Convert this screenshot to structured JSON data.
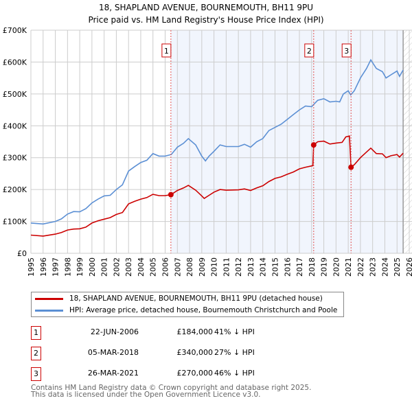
{
  "chart_data": {
    "type": "line",
    "title": "18, SHAPLAND AVENUE, BOURNEMOUTH, BH11 9PU",
    "subtitle": "Price paid vs. HM Land Registry's House Price Index (HPI)",
    "xlim": [
      1995,
      2026
    ],
    "ylim": [
      0,
      700000
    ],
    "y_ticks": [
      {
        "v": 0,
        "label": "£0"
      },
      {
        "v": 100000,
        "label": "£100K"
      },
      {
        "v": 200000,
        "label": "£200K"
      },
      {
        "v": 300000,
        "label": "£300K"
      },
      {
        "v": 400000,
        "label": "£400K"
      },
      {
        "v": 500000,
        "label": "£500K"
      },
      {
        "v": 600000,
        "label": "£600K"
      },
      {
        "v": 700000,
        "label": "£700K"
      }
    ],
    "x_ticks": [
      "1995",
      "1996",
      "1997",
      "1998",
      "1999",
      "2000",
      "2001",
      "2002",
      "2003",
      "2004",
      "2005",
      "2006",
      "2007",
      "2008",
      "2009",
      "2010",
      "2011",
      "2012",
      "2013",
      "2014",
      "2015",
      "2016",
      "2017",
      "2018",
      "2019",
      "2020",
      "2021",
      "2022",
      "2023",
      "2024",
      "2025",
      "2026"
    ],
    "grid": true,
    "shaded_from": 2006.47,
    "forecast_from": 2025.5,
    "series": [
      {
        "name": "18, SHAPLAND AVENUE, BOURNEMOUTH, BH11 9PU (detached house)",
        "color": "#cc0000",
        "x": [
          1995,
          1996,
          1997,
          1997.5,
          1998,
          1998.5,
          1999,
          1999.5,
          2000,
          2000.5,
          2001,
          2001.5,
          2002,
          2002.5,
          2003,
          2003.5,
          2004,
          2004.5,
          2005,
          2005.5,
          2006,
          2006.47,
          2007,
          2007.5,
          2007.9,
          2008.5,
          2009,
          2009.2,
          2009.6,
          2010,
          2010.5,
          2011,
          2012,
          2012.5,
          2013,
          2013.5,
          2014,
          2014.5,
          2015,
          2015.5,
          2016,
          2016.5,
          2017,
          2017.5,
          2018.1,
          2018.17,
          2018.5,
          2019,
          2019.5,
          2020,
          2020.5,
          2020.8,
          2021.1,
          2021.23,
          2021.5,
          2022,
          2022.5,
          2022.85,
          2023.3,
          2023.8,
          2024.1,
          2024.5,
          2025,
          2025.2,
          2025.5
        ],
        "y": [
          57,
          54,
          60,
          65,
          73,
          76,
          77,
          82,
          95,
          102,
          107,
          112,
          122,
          128,
          155,
          163,
          170,
          175,
          185,
          181,
          181,
          184,
          197,
          205,
          213,
          198,
          180,
          172,
          182,
          192,
          200,
          198,
          199,
          202,
          197,
          205,
          212,
          225,
          235,
          240,
          248,
          255,
          265,
          270,
          275,
          340,
          350,
          352,
          343,
          346,
          348,
          365,
          368,
          270,
          278,
          300,
          318,
          330,
          313,
          312,
          300,
          306,
          310,
          302,
          314
        ]
      },
      {
        "name": "HPI: Average price, detached house, Bournemouth Christchurch and Poole",
        "color": "#5b8fd4",
        "x": [
          1995,
          1996,
          1997,
          1997.5,
          1998,
          1998.5,
          1999,
          1999.5,
          2000,
          2000.5,
          2001,
          2001.5,
          2002,
          2002.5,
          2003,
          2003.5,
          2004,
          2004.5,
          2005,
          2005.5,
          2006,
          2006.5,
          2007,
          2007.5,
          2007.9,
          2008.5,
          2009,
          2009.3,
          2009.6,
          2010,
          2010.5,
          2011,
          2012,
          2012.5,
          2013,
          2013.5,
          2014,
          2014.5,
          2015,
          2015.5,
          2016,
          2016.5,
          2017,
          2017.5,
          2018,
          2018.5,
          2019,
          2019.5,
          2020,
          2020.3,
          2020.6,
          2021,
          2021.2,
          2021.5,
          2022,
          2022.5,
          2022.85,
          2023.3,
          2023.8,
          2024.1,
          2024.5,
          2025,
          2025.2,
          2025.5
        ],
        "y": [
          95,
          92,
          100,
          108,
          123,
          131,
          130,
          140,
          158,
          170,
          180,
          182,
          200,
          215,
          258,
          272,
          285,
          292,
          313,
          305,
          305,
          310,
          333,
          345,
          360,
          340,
          305,
          290,
          305,
          320,
          340,
          335,
          335,
          342,
          333,
          350,
          360,
          385,
          395,
          405,
          420,
          435,
          450,
          462,
          460,
          480,
          485,
          475,
          477,
          475,
          500,
          510,
          497,
          510,
          550,
          580,
          607,
          580,
          570,
          550,
          560,
          572,
          555,
          575
        ]
      }
    ],
    "y_units": "thousand GBP",
    "markers": [
      {
        "label": "1",
        "x": 2006.47,
        "y": 184
      },
      {
        "label": "2",
        "x": 2018.17,
        "y": 340
      },
      {
        "label": "3",
        "x": 2021.23,
        "y": 270
      }
    ]
  },
  "legend": {
    "property": "18, SHAPLAND AVENUE, BOURNEMOUTH, BH11 9PU (detached house)",
    "hpi": "HPI: Average price, detached house, Bournemouth Christchurch and Poole"
  },
  "transactions": [
    {
      "num": "1",
      "date": "22-JUN-2006",
      "price": "£184,000",
      "hpi": "41% ↓ HPI"
    },
    {
      "num": "2",
      "date": "05-MAR-2018",
      "price": "£340,000",
      "hpi": "27% ↓ HPI"
    },
    {
      "num": "3",
      "date": "26-MAR-2021",
      "price": "£270,000",
      "hpi": "46% ↓ HPI"
    }
  ],
  "footer": {
    "line1": "Contains HM Land Registry data © Crown copyright and database right 2025.",
    "line2": "This data is licensed under the Open Government Licence v3.0."
  }
}
